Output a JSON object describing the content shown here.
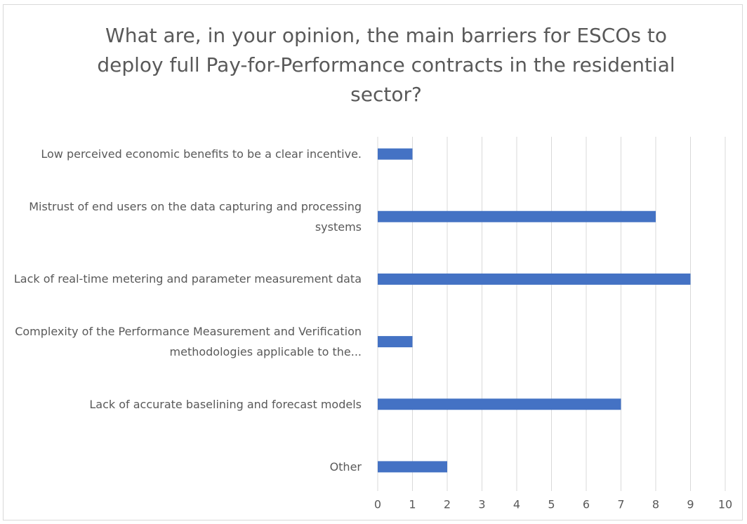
{
  "chart_data": {
    "type": "hbar",
    "title": "What are, in your opinion, the main barriers for ESCOs to deploy full Pay-for-Performance contracts in the residential sector?",
    "categories": [
      "Low perceived economic benefits to be a clear incentive.",
      "Mistrust of end users on the data capturing and processing systems",
      "Lack of real-time metering and parameter measurement data",
      "Complexity of the Performance Measurement and Verification methodologies applicable to the...",
      "Lack of accurate baselining and forecast models",
      "Other"
    ],
    "values": [
      1,
      8,
      9,
      1,
      7,
      2
    ],
    "color": "#4472c4",
    "xlim": [
      0,
      10
    ],
    "xticks": [
      0,
      1,
      2,
      3,
      4,
      5,
      6,
      7,
      8,
      9,
      10
    ],
    "grid": true
  }
}
